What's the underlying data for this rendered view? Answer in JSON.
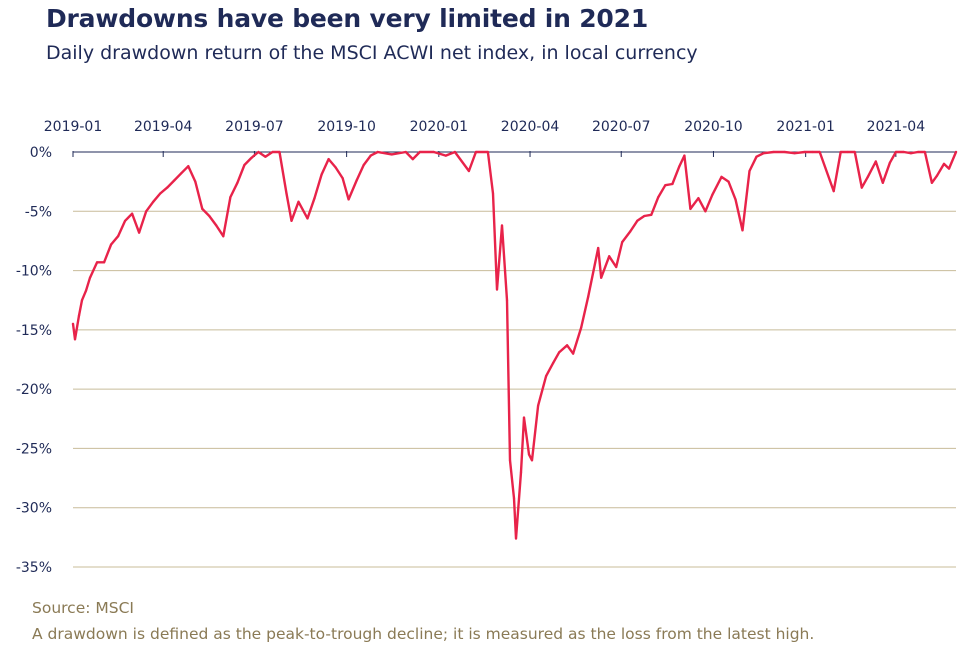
{
  "title": "Drawdowns have been very limited in 2021",
  "subtitle": "Daily drawdown return of the MSCI ACWI net index, in local currency",
  "source": "Source: MSCI",
  "note": "A drawdown is defined as the peak-to-trough decline; it is measured as the loss from the latest high.",
  "colors": {
    "series": "#e8234a",
    "title": "#1f2a57",
    "grid": "#c8bc9a",
    "footnote": "#8a7a55"
  },
  "chart_data": {
    "type": "line",
    "title": "Drawdowns have been very limited in 2021",
    "subtitle": "Daily drawdown return of the MSCI ACWI net index, in local currency",
    "xlabel": "",
    "ylabel": "",
    "x_axis_position": "top",
    "xlim": [
      "2019-01-01",
      "2021-05-31"
    ],
    "ylim": [
      -35,
      0
    ],
    "x_ticks": [
      "2019-01",
      "2019-04",
      "2019-07",
      "2019-10",
      "2020-01",
      "2020-04",
      "2020-07",
      "2020-10",
      "2021-01",
      "2021-04"
    ],
    "y_ticks": [
      0,
      -5,
      -10,
      -15,
      -20,
      -25,
      -30,
      -35
    ],
    "y_tick_labels": [
      "0%",
      "-5%",
      "-10%",
      "-15%",
      "-20%",
      "-25%",
      "-30%",
      "-35%"
    ],
    "grid": "horizontal",
    "series": [
      {
        "x": [
          "2019-01-01",
          "2019-01-03",
          "2019-01-07",
          "2019-01-10",
          "2019-01-14",
          "2019-01-18",
          "2019-01-25",
          "2019-02-01",
          "2019-02-08",
          "2019-02-15",
          "2019-02-22",
          "2019-03-01",
          "2019-03-08",
          "2019-03-15",
          "2019-03-22",
          "2019-03-29",
          "2019-04-05",
          "2019-04-12",
          "2019-04-19",
          "2019-04-26",
          "2019-05-03",
          "2019-05-10",
          "2019-05-17",
          "2019-05-24",
          "2019-05-31",
          "2019-06-07",
          "2019-06-14",
          "2019-06-21",
          "2019-06-28",
          "2019-07-05",
          "2019-07-12",
          "2019-07-19",
          "2019-07-26",
          "2019-08-02",
          "2019-08-07",
          "2019-08-14",
          "2019-08-23",
          "2019-08-30",
          "2019-09-06",
          "2019-09-13",
          "2019-09-20",
          "2019-09-27",
          "2019-10-03",
          "2019-10-11",
          "2019-10-18",
          "2019-10-25",
          "2019-11-01",
          "2019-11-15",
          "2019-11-29",
          "2019-12-06",
          "2019-12-13",
          "2019-12-27",
          "2020-01-08",
          "2020-01-17",
          "2020-01-31",
          "2020-02-07",
          "2020-02-19",
          "2020-02-24",
          "2020-02-28",
          "2020-03-04",
          "2020-03-09",
          "2020-03-12",
          "2020-03-16",
          "2020-03-18",
          "2020-03-23",
          "2020-03-26",
          "2020-03-31",
          "2020-04-03",
          "2020-04-09",
          "2020-04-17",
          "2020-04-24",
          "2020-04-30",
          "2020-05-08",
          "2020-05-14",
          "2020-05-22",
          "2020-05-29",
          "2020-06-08",
          "2020-06-11",
          "2020-06-19",
          "2020-06-26",
          "2020-07-02",
          "2020-07-10",
          "2020-07-17",
          "2020-07-24",
          "2020-07-31",
          "2020-08-07",
          "2020-08-14",
          "2020-08-21",
          "2020-08-28",
          "2020-09-02",
          "2020-09-08",
          "2020-09-16",
          "2020-09-23",
          "2020-09-30",
          "2020-10-09",
          "2020-10-16",
          "2020-10-23",
          "2020-10-30",
          "2020-11-06",
          "2020-11-13",
          "2020-11-20",
          "2020-11-30",
          "2020-12-11",
          "2020-12-21",
          "2020-12-31",
          "2021-01-08",
          "2021-01-15",
          "2021-01-29",
          "2021-02-05",
          "2021-02-12",
          "2021-02-19",
          "2021-02-26",
          "2021-03-04",
          "2021-03-12",
          "2021-03-19",
          "2021-03-26",
          "2021-04-01",
          "2021-04-09",
          "2021-04-16",
          "2021-04-23",
          "2021-04-30",
          "2021-05-07",
          "2021-05-12",
          "2021-05-19",
          "2021-05-24",
          "2021-05-31"
        ],
        "y": [
          -14.5,
          -15.8,
          -13.8,
          -12.5,
          -11.7,
          -10.6,
          -9.3,
          -9.3,
          -7.8,
          -7.1,
          -5.8,
          -5.2,
          -6.8,
          -5.0,
          -4.2,
          -3.5,
          -3.0,
          -2.4,
          -1.8,
          -1.2,
          -2.5,
          -4.8,
          -5.4,
          -6.2,
          -7.1,
          -3.8,
          -2.6,
          -1.1,
          -0.5,
          0.0,
          -0.4,
          0.0,
          0.0,
          -3.5,
          -5.8,
          -4.2,
          -5.6,
          -3.9,
          -1.9,
          -0.6,
          -1.3,
          -2.2,
          -4.0,
          -2.4,
          -1.1,
          -0.3,
          0.0,
          -0.2,
          0.0,
          -0.6,
          0.0,
          0.0,
          -0.3,
          0.0,
          -1.6,
          0.0,
          0.0,
          -3.5,
          -11.6,
          -6.2,
          -12.5,
          -26.0,
          -29.2,
          -32.6,
          -27.0,
          -22.4,
          -25.5,
          -26.0,
          -21.4,
          -18.9,
          -17.8,
          -16.9,
          -16.3,
          -17.0,
          -14.8,
          -12.2,
          -8.1,
          -10.6,
          -8.8,
          -9.7,
          -7.6,
          -6.7,
          -5.8,
          -5.4,
          -5.3,
          -3.8,
          -2.8,
          -2.7,
          -1.2,
          -0.3,
          -4.8,
          -3.9,
          -5.0,
          -3.6,
          -2.1,
          -2.5,
          -4.0,
          -6.6,
          -1.6,
          -0.4,
          -0.1,
          0.0,
          0.0,
          -0.1,
          0.0,
          0.0,
          0.0,
          -3.3,
          0.0,
          0.0,
          0.0,
          -3.0,
          -2.1,
          -0.8,
          -2.6,
          -0.9,
          0.0,
          0.0,
          -0.1,
          0.0,
          0.0,
          -2.6,
          -2.0,
          -1.0,
          -1.4,
          0.0
        ]
      }
    ]
  }
}
